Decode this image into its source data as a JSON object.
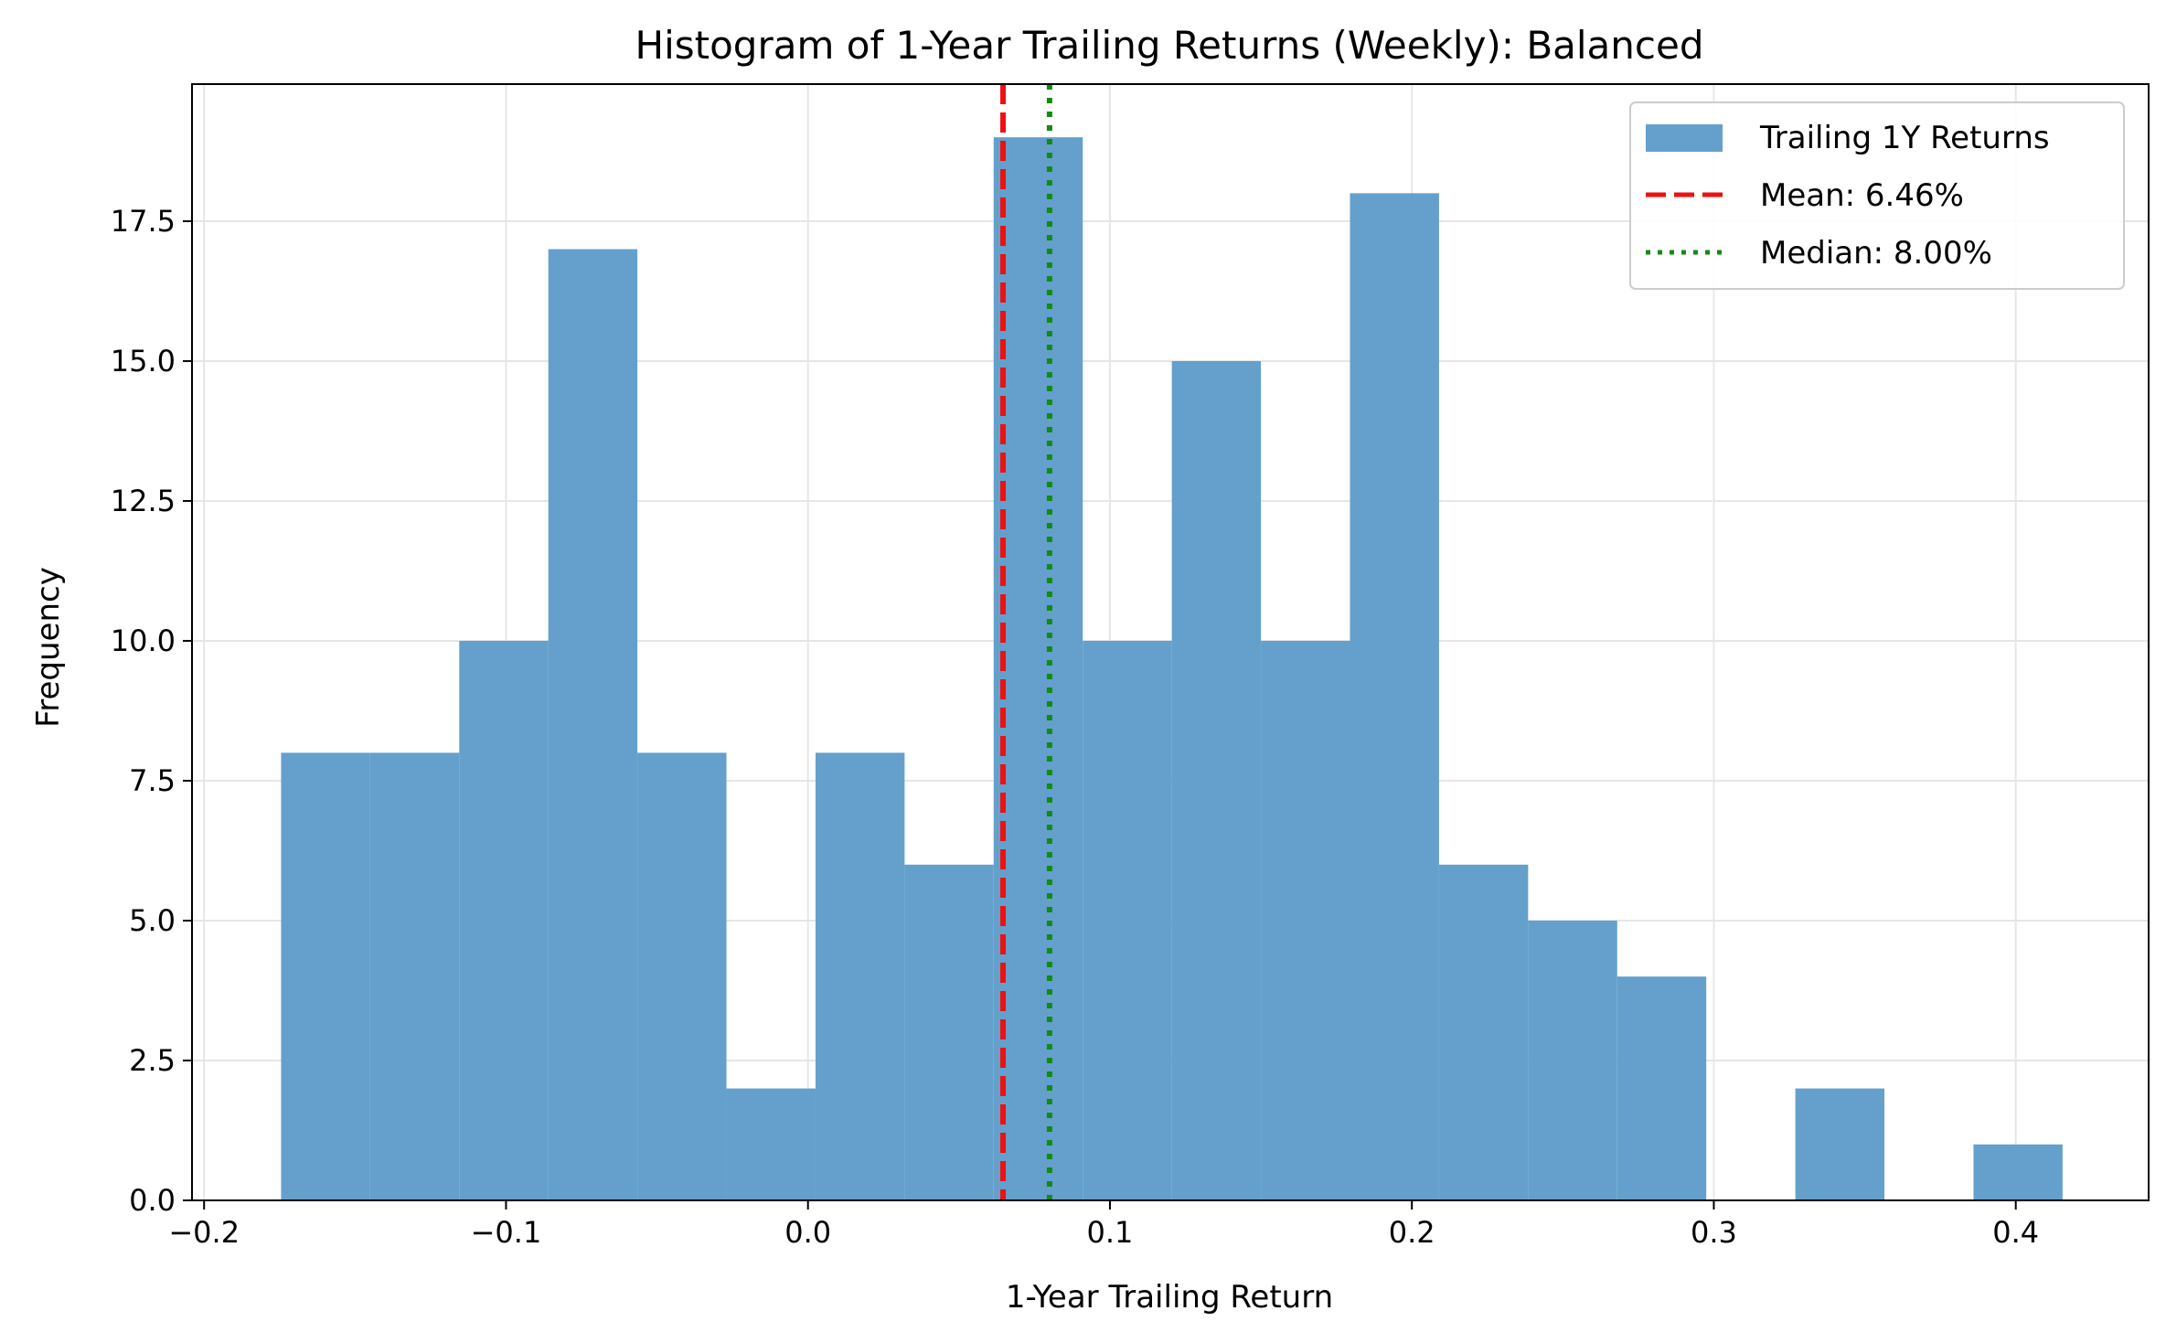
{
  "chart_data": {
    "type": "bar",
    "title": "Histogram of 1-Year Trailing Returns (Weekly): Balanced",
    "xlabel": "1-Year Trailing Return",
    "ylabel": "Frequency",
    "xlim": [
      -0.204,
      0.444
    ],
    "ylim": [
      0,
      19.95
    ],
    "grid": true,
    "legend_position": "top-right",
    "bin_edges": [
      -0.1745,
      -0.145,
      -0.1155,
      -0.086,
      -0.0565,
      -0.027,
      0.0025,
      0.032,
      0.0615,
      0.091,
      0.1205,
      0.15,
      0.1795,
      0.209,
      0.2385,
      0.268,
      0.2975,
      0.327,
      0.3565,
      0.386,
      0.4155
    ],
    "counts": [
      8,
      8,
      10,
      17,
      8,
      2,
      8,
      6,
      19,
      10,
      15,
      10,
      18,
      6,
      5,
      4,
      0,
      2,
      0,
      1
    ],
    "x_ticks": [
      -0.2,
      -0.1,
      0.0,
      0.1,
      0.2,
      0.3,
      0.4
    ],
    "x_tick_labels": [
      "−0.2",
      "−0.1",
      "0.0",
      "0.1",
      "0.2",
      "0.3",
      "0.4"
    ],
    "y_ticks": [
      0,
      2.5,
      5,
      7.5,
      10,
      12.5,
      15,
      17.5
    ],
    "y_tick_labels": [
      "0.0",
      "2.5",
      "5.0",
      "7.5",
      "10.0",
      "12.5",
      "15.0",
      "17.5"
    ],
    "mean": 0.0646,
    "median": 0.08,
    "colors": {
      "bars": "#64a0cb",
      "mean_line": "#ee1111",
      "median_line": "#138a13",
      "grid": "#e6e6e6"
    },
    "legend": [
      {
        "label": "Trailing 1Y Returns",
        "kind": "patch"
      },
      {
        "label": "Mean: 6.46%",
        "kind": "dashed-line"
      },
      {
        "label": "Median: 8.00%",
        "kind": "dotted-line"
      }
    ]
  }
}
